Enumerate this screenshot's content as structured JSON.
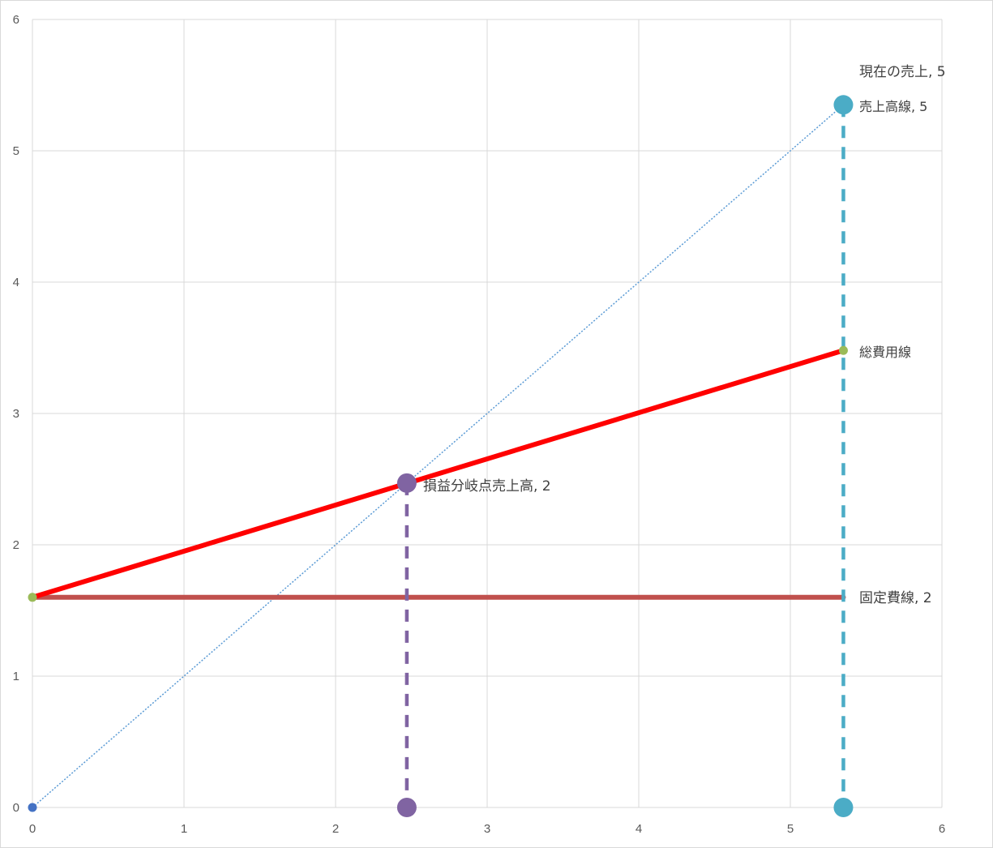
{
  "chart_data": {
    "type": "scatter",
    "title": "",
    "xlabel": "",
    "ylabel": "",
    "xlim": [
      0,
      6
    ],
    "ylim": [
      0,
      6
    ],
    "x_ticks": [
      "0",
      "1",
      "2",
      "3",
      "4",
      "5",
      "6"
    ],
    "y_ticks": [
      "0",
      "1",
      "2",
      "3",
      "4",
      "5",
      "6"
    ],
    "grid": true,
    "legend": "none",
    "series": [
      {
        "key": "sales",
        "style": "dotted",
        "color": "#5b9bd5",
        "points": [
          [
            0,
            0
          ],
          [
            5.35,
            5.35
          ]
        ]
      },
      {
        "key": "total_cost",
        "style": "solid-thick",
        "color": "#ff0000",
        "points": [
          [
            0,
            1.6
          ],
          [
            5.35,
            3.48
          ]
        ]
      },
      {
        "key": "fixed_cost",
        "style": "solid-thick",
        "color": "#c0504d",
        "points": [
          [
            0,
            1.6
          ],
          [
            5.35,
            1.6
          ]
        ]
      },
      {
        "key": "bep_drop",
        "style": "dashed",
        "color": "#8064a2",
        "points": [
          [
            2.47,
            2.47
          ],
          [
            2.47,
            0
          ]
        ]
      },
      {
        "key": "current_drop",
        "style": "dashed",
        "color": "#4bacc6",
        "points": [
          [
            5.35,
            5.35
          ],
          [
            5.35,
            0
          ]
        ]
      }
    ],
    "markers": [
      {
        "key": "origin",
        "x": 0,
        "y": 0,
        "size": "small",
        "color": "#4472c4"
      },
      {
        "key": "fixed_start",
        "x": 0,
        "y": 1.6,
        "size": "small",
        "color": "#9bbb59"
      },
      {
        "key": "total_end",
        "x": 5.35,
        "y": 3.48,
        "size": "small",
        "color": "#9bbb59"
      },
      {
        "key": "bep",
        "x": 2.47,
        "y": 2.47,
        "size": "large",
        "color": "#8064a2"
      },
      {
        "key": "bep_base",
        "x": 2.47,
        "y": 0,
        "size": "large",
        "color": "#8064a2"
      },
      {
        "key": "current",
        "x": 5.35,
        "y": 5.35,
        "size": "large",
        "color": "#4bacc6"
      },
      {
        "key": "current_base",
        "x": 5.35,
        "y": 0,
        "size": "large",
        "color": "#4bacc6"
      }
    ],
    "annotations": [
      {
        "key": "current_sales",
        "text": "現在の売上, 5",
        "size": "lbl"
      },
      {
        "key": "sales_line",
        "text": "売上高線, 5",
        "size": "lbl-sm"
      },
      {
        "key": "total_cost_line",
        "text": "総費用線",
        "size": "lbl-sm"
      },
      {
        "key": "bep_sales",
        "text": "損益分岐点売上高, 2",
        "size": "lbl"
      },
      {
        "key": "fixed_cost_line",
        "text": "固定費線, 2",
        "size": "lbl"
      }
    ]
  }
}
